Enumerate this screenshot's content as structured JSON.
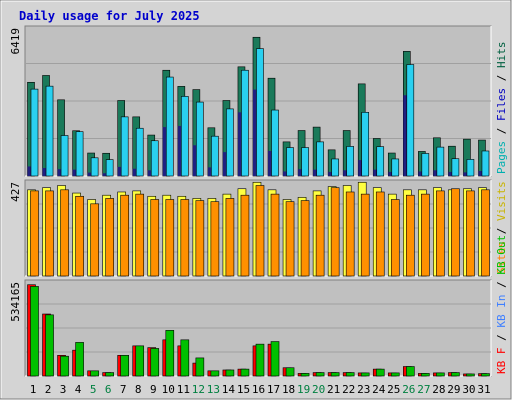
{
  "chart_data": {
    "type": "bar",
    "title": "Daily usage for July 2025",
    "colors": {
      "title": "#0000cc",
      "frame_bg": "#d4d4d4",
      "plot_bg": "#c0c0c0",
      "grid": "#a0a0a0",
      "weekday_label": "#000000",
      "weekend_label": "#008040"
    },
    "categories": [
      "1",
      "2",
      "3",
      "4",
      "5",
      "6",
      "7",
      "8",
      "9",
      "10",
      "11",
      "12",
      "13",
      "14",
      "15",
      "16",
      "17",
      "18",
      "19",
      "20",
      "21",
      "22",
      "23",
      "24",
      "25",
      "26",
      "27",
      "28",
      "29",
      "30",
      "31"
    ],
    "weekend_days": [
      "5",
      "6",
      "12",
      "13",
      "19",
      "20",
      "26",
      "27"
    ],
    "panels": [
      {
        "name": "hits-files-pages",
        "max_label": "6419",
        "ylim": [
          0,
          6419
        ],
        "legend": [
          {
            "text": "Hits",
            "color": "#006040"
          },
          {
            "text": "Files",
            "color": "#0000c0"
          },
          {
            "text": "Pages",
            "color": "#00b0b0"
          }
        ],
        "series": [
          {
            "name": "Hits",
            "color": "#1a7a5a",
            "values": [
              4120,
              4420,
              3350,
              1990,
              1010,
              1000,
              3320,
              2600,
              1800,
              4650,
              3940,
              3800,
              2120,
              3320,
              4800,
              6100,
              4300,
              1500,
              2000,
              2150,
              1150,
              2000,
              4050,
              1650,
              1010,
              5480,
              1080,
              1680,
              1310,
              1620,
              1580
            ]
          },
          {
            "name": "Files",
            "color": "#2ad0f0",
            "values": [
              3820,
              3950,
              1780,
              1950,
              800,
              720,
              2600,
              2100,
              1550,
              4350,
              3500,
              3250,
              1750,
              2950,
              4650,
              5600,
              2900,
              1250,
              1250,
              1500,
              750,
              1300,
              2800,
              1290,
              750,
              4900,
              990,
              1270,
              760,
              730,
              1100
            ]
          },
          {
            "name": "Pages",
            "color": "#202080",
            "values": [
              420,
              350,
              300,
              280,
              150,
              120,
              400,
              320,
              250,
              2150,
              2200,
              1350,
              380,
              1050,
              2800,
              3800,
              1100,
              200,
              300,
              280,
              180,
              250,
              700,
              280,
              180,
              3550,
              200,
              250,
              180,
              160,
              220
            ]
          }
        ]
      },
      {
        "name": "visits-sites",
        "max_label": "427",
        "ylim": [
          0,
          427
        ],
        "legend": [
          {
            "text": "Visits",
            "color": "#c8b400"
          },
          {
            "text": "Sites",
            "color": "#ff8000"
          }
        ],
        "series": [
          {
            "name": "Visits",
            "color": "#ffff40",
            "values": [
              400,
              410,
              420,
              385,
              355,
              375,
              390,
              395,
              370,
              375,
              370,
              360,
              360,
              380,
              405,
              435,
              400,
              355,
              365,
              395,
              415,
              420,
              435,
              410,
              380,
              400,
              400,
              410,
              400,
              405,
              410
            ]
          },
          {
            "name": "Sites",
            "color": "#ff9000",
            "values": [
              395,
              395,
              400,
              370,
              335,
              360,
              375,
              380,
              355,
              355,
              355,
              350,
              345,
              360,
              375,
              420,
              380,
              345,
              350,
              375,
              410,
              390,
              380,
              390,
              355,
              375,
              380,
              395,
              405,
              395,
              400
            ]
          }
        ]
      },
      {
        "name": "kbf-kbin-kbout",
        "max_label": "534165",
        "ylim": [
          0,
          534165
        ],
        "legend": [
          {
            "text": "KB Out",
            "color": "#00c000"
          },
          {
            "text": "KB In",
            "color": "#4080ff"
          },
          {
            "text": "KB F",
            "color": "#ff0000"
          }
        ],
        "series": [
          {
            "name": "KB F",
            "color": "#ff0000",
            "values": [
              530000,
              360000,
              120000,
              150000,
              30000,
              20000,
              120000,
              175000,
              165000,
              210000,
              175000,
              75000,
              30000,
              35000,
              40000,
              175000,
              185000,
              48000,
              15000,
              20000,
              20000,
              20000,
              18000,
              40000,
              18000,
              55000,
              15000,
              18000,
              20000,
              12000,
              14000
            ]
          },
          {
            "name": "KB Out",
            "color": "#00c000",
            "values": [
              520000,
              355000,
              115000,
              195000,
              30000,
              20000,
              120000,
              175000,
              160000,
              265000,
              210000,
              105000,
              30000,
              35000,
              40000,
              185000,
              200000,
              48000,
              15000,
              20000,
              20000,
              20000,
              18000,
              40000,
              18000,
              55000,
              15000,
              18000,
              20000,
              12000,
              14000
            ]
          }
        ]
      }
    ]
  }
}
